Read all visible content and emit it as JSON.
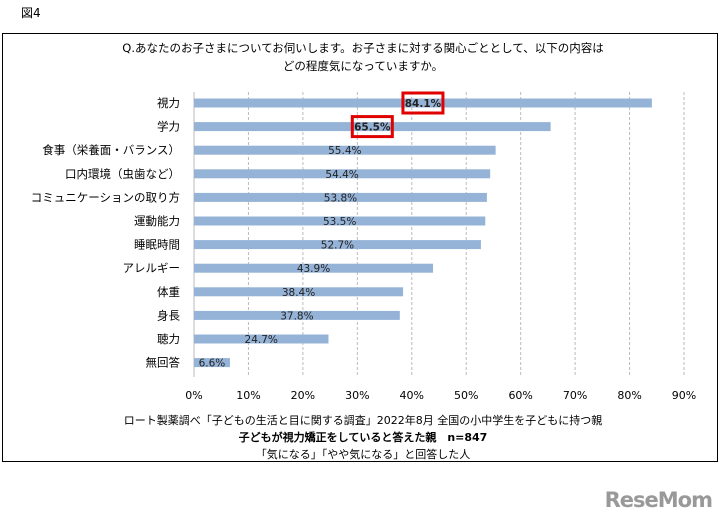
{
  "figure_label": "図4",
  "chart_data": {
    "type": "bar",
    "orientation": "horizontal",
    "title_lines": [
      "Q.あなたのお子さまについてお伺いします。お子さまに対する関心ごととして、以下の内容は",
      "どの程度気になっていますか。"
    ],
    "categories": [
      "視力",
      "学力",
      "食事（栄養面・バランス）",
      "口内環境（虫歯など）",
      "コミュニケーションの取り方",
      "運動能力",
      "睡眠時間",
      "アレルギー",
      "体重",
      "身長",
      "聴力",
      "無回答"
    ],
    "values": [
      84.1,
      65.5,
      55.4,
      54.4,
      53.8,
      53.5,
      52.7,
      43.9,
      38.4,
      37.8,
      24.7,
      6.6
    ],
    "value_labels": [
      "84.1%",
      "65.5%",
      "55.4%",
      "54.4%",
      "53.8%",
      "53.5%",
      "52.7%",
      "43.9%",
      "38.4%",
      "37.8%",
      "24.7%",
      "6.6%"
    ],
    "highlighted": [
      0,
      1
    ],
    "xlim": [
      0,
      90
    ],
    "x_ticks": [
      "0%",
      "10%",
      "20%",
      "30%",
      "40%",
      "50%",
      "60%",
      "70%",
      "80%",
      "90%"
    ],
    "grid": true,
    "bar_color": "#95B3D7",
    "highlight_color": "#E00000"
  },
  "footer": {
    "line1": "ロート製薬調べ「子どもの生活と目に関する調査」2022年8月 全国の小中学生を子どもに持つ親",
    "line2": "子どもが視力矯正をしていると答えた親　n=847",
    "line3": "「気になる」「やや気になる」と回答した人"
  },
  "logo": "ReseMom"
}
